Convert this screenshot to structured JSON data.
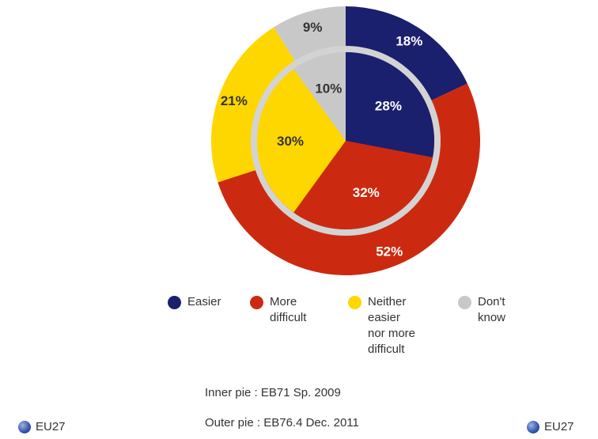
{
  "chart_data": {
    "type": "pie",
    "rings": [
      {
        "ring": "outer",
        "label": "Outer pie",
        "source": "EB76.4 Dec. 2011",
        "values": [
          18,
          52,
          21,
          9
        ],
        "value_labels": [
          "18%",
          "52%",
          "21%",
          "9%"
        ]
      },
      {
        "ring": "inner",
        "label": "Inner pie",
        "source": "EB71 Sp. 2009",
        "values": [
          28,
          32,
          30,
          10
        ],
        "value_labels": [
          "28%",
          "32%",
          "30%",
          "10%"
        ]
      }
    ],
    "categories": [
      "Easier",
      "More\ndifficult",
      "Neither\neasier\nnor more\ndifficult",
      "Don't\nknow"
    ],
    "colors": [
      "#1a1f6e",
      "#cc2a10",
      "#ffd700",
      "#c8c8c8"
    ],
    "label_colors": [
      "#ffffff",
      "#ffffff",
      "#333333",
      "#333333"
    ],
    "legend_position": "below"
  },
  "source_lines": [
    {
      "label": "Inner pie :",
      "value": "EB71 Sp. 2009"
    },
    {
      "label": "Outer pie :",
      "value": "EB76.4 Dec. 2011"
    }
  ],
  "region_label": "EU27"
}
